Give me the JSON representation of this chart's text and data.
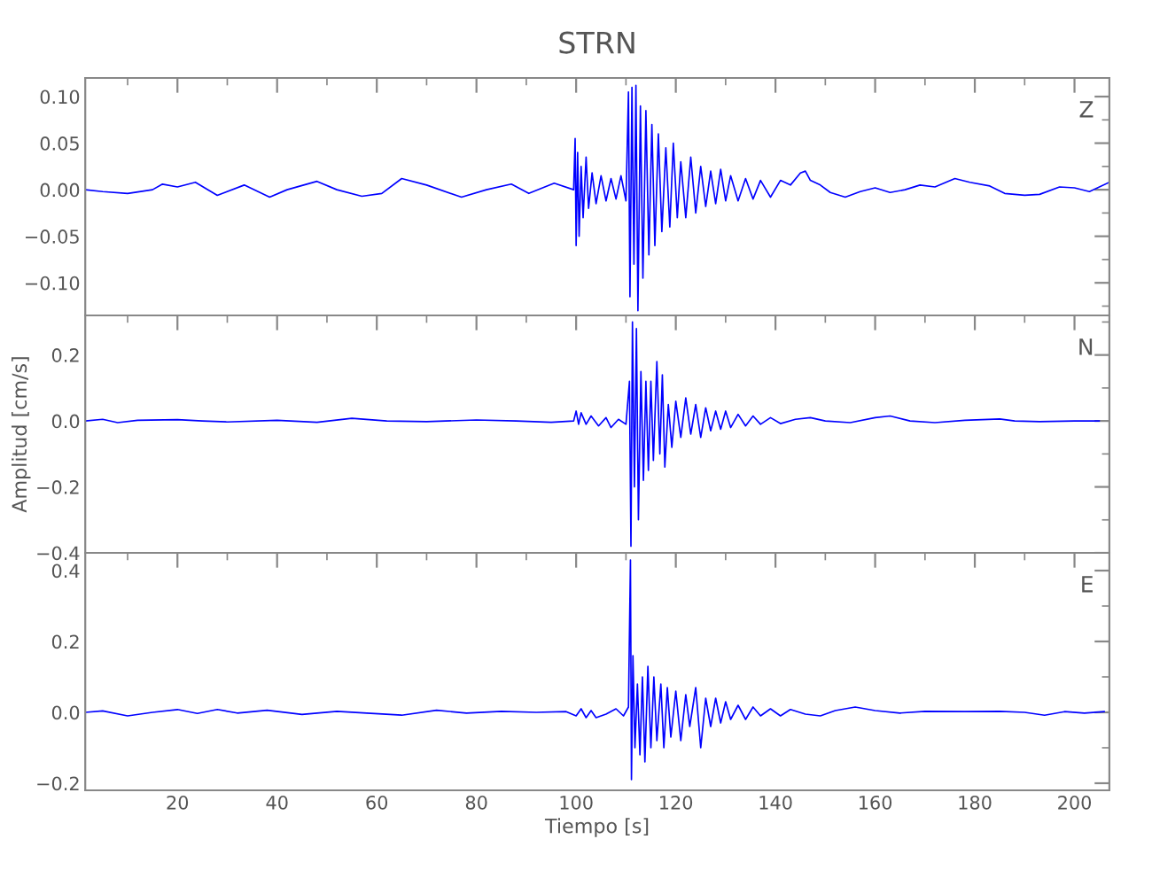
{
  "chart_data": [
    {
      "type": "line",
      "title": "STRN",
      "annotations": [
        "Z"
      ],
      "xlim": [
        1.5,
        207
      ],
      "xticks": [
        20,
        40,
        60,
        80,
        100,
        120,
        140,
        160,
        180,
        200
      ],
      "ylim": [
        -0.135,
        0.12
      ],
      "yticks": [
        {
          "value": -0.1,
          "label": "−0.10"
        },
        {
          "value": -0.05,
          "label": "−0.05"
        },
        {
          "value": 0,
          "label": "0.00"
        },
        {
          "value": 0.05,
          "label": "0.05"
        },
        {
          "value": 0.1,
          "label": "0.10"
        }
      ],
      "tick_labels": "y",
      "grid": false,
      "legend": false,
      "series": [
        {
          "color": "#0000ff",
          "x": [
            1.5,
            5,
            10,
            15,
            17,
            20,
            23.6,
            28,
            33.4,
            38.5,
            42,
            48,
            52,
            57,
            61,
            65,
            70,
            77,
            82,
            87,
            90.5,
            95.6,
            99.5,
            99.8,
            100.0,
            100.3,
            100.6,
            101.0,
            101.4,
            102,
            102.5,
            103.2,
            104,
            105,
            106,
            107,
            108,
            109,
            110,
            110.5,
            110.8,
            111.2,
            111.6,
            112,
            112.4,
            112.9,
            113.4,
            114,
            114.6,
            115.2,
            115.8,
            116.5,
            117.2,
            118,
            118.8,
            119.5,
            120.3,
            121,
            122,
            123,
            124,
            125,
            126,
            127,
            128,
            129,
            130,
            131,
            132.5,
            134,
            135.5,
            137,
            139,
            141,
            143,
            145,
            146,
            147,
            149,
            151,
            154,
            157,
            160,
            163,
            166,
            169,
            172,
            176,
            179,
            183,
            186,
            190,
            193,
            197,
            200,
            203,
            207
          ],
          "values": [
            0.0,
            -0.002,
            -0.004,
            0.0,
            0.006,
            0.003,
            0.008,
            -0.006,
            0.005,
            -0.008,
            0.0,
            0.009,
            0.0,
            -0.007,
            -0.004,
            0.012,
            0.005,
            -0.008,
            0.0,
            0.006,
            -0.004,
            0.007,
            0.0,
            0.055,
            -0.06,
            0.04,
            -0.05,
            0.025,
            -0.03,
            0.035,
            -0.02,
            0.018,
            -0.015,
            0.015,
            -0.012,
            0.012,
            -0.01,
            0.015,
            -0.012,
            0.105,
            -0.115,
            0.11,
            -0.08,
            0.112,
            -0.13,
            0.09,
            -0.095,
            0.085,
            -0.07,
            0.07,
            -0.06,
            0.06,
            -0.045,
            0.045,
            -0.04,
            0.05,
            -0.03,
            0.03,
            -0.03,
            0.035,
            -0.025,
            0.025,
            -0.018,
            0.02,
            -0.015,
            0.022,
            -0.012,
            0.015,
            -0.012,
            0.012,
            -0.01,
            0.01,
            -0.008,
            0.01,
            0.005,
            0.018,
            0.02,
            0.01,
            0.005,
            -0.003,
            -0.008,
            -0.002,
            0.002,
            -0.003,
            0.0,
            0.005,
            0.003,
            0.012,
            0.008,
            0.004,
            -0.004,
            -0.006,
            -0.005,
            0.003,
            0.002,
            -0.002,
            0.008
          ]
        }
      ]
    },
    {
      "type": "line",
      "ylabel": "Amplitud [cm/s]",
      "annotations": [
        "N"
      ],
      "xlim": [
        1.5,
        207
      ],
      "xticks": [
        20,
        40,
        60,
        80,
        100,
        120,
        140,
        160,
        180,
        200
      ],
      "ylim": [
        -0.4,
        0.32
      ],
      "yticks": [
        {
          "value": -0.4,
          "label": "−0.4"
        },
        {
          "value": -0.2,
          "label": "−0.2"
        },
        {
          "value": 0,
          "label": "0.0"
        },
        {
          "value": 0.2,
          "label": "0.2"
        }
      ],
      "tick_labels": "y",
      "grid": false,
      "legend": false,
      "series": [
        {
          "color": "#0000ff",
          "x": [
            1.5,
            5,
            8,
            12,
            20,
            25,
            30,
            40,
            48,
            55,
            62,
            70,
            80,
            88,
            95,
            99.5,
            100,
            100.5,
            101,
            102,
            103,
            104.5,
            106,
            107,
            108.5,
            110,
            110.7,
            111,
            111.3,
            111.7,
            112.1,
            112.5,
            113,
            113.5,
            114,
            114.5,
            115,
            115.5,
            116.2,
            116.8,
            117.3,
            117.8,
            118.5,
            119.2,
            120,
            121,
            122,
            123,
            124,
            125,
            126,
            127,
            128,
            129,
            130,
            131,
            132.5,
            134,
            135.5,
            137,
            139,
            141,
            144,
            147,
            150,
            155,
            160,
            163,
            167,
            172,
            178,
            185,
            188,
            193,
            200,
            205
          ],
          "values": [
            0.0,
            0.005,
            -0.005,
            0.002,
            0.004,
            0.0,
            -0.003,
            0.002,
            -0.004,
            0.008,
            0.0,
            -0.002,
            0.003,
            0.0,
            -0.004,
            0.0,
            0.03,
            -0.01,
            0.025,
            -0.01,
            0.015,
            -0.015,
            0.01,
            -0.02,
            0.005,
            -0.01,
            0.12,
            -0.38,
            0.3,
            -0.2,
            0.28,
            -0.3,
            0.15,
            -0.18,
            0.12,
            -0.15,
            0.12,
            -0.12,
            0.18,
            -0.1,
            0.14,
            -0.14,
            0.05,
            -0.08,
            0.06,
            -0.05,
            0.07,
            -0.04,
            0.05,
            -0.05,
            0.04,
            -0.03,
            0.03,
            -0.025,
            0.03,
            -0.02,
            0.02,
            -0.015,
            0.015,
            -0.01,
            0.01,
            -0.008,
            0.005,
            0.01,
            0.0,
            -0.005,
            0.01,
            0.015,
            0.0,
            -0.005,
            0.002,
            0.006,
            0.0,
            -0.002,
            0.0,
            0.0
          ]
        }
      ]
    },
    {
      "type": "line",
      "xlabel": "Tiempo [s]",
      "annotations": [
        "E"
      ],
      "xlim": [
        1.5,
        207
      ],
      "xticks": [
        20,
        40,
        60,
        80,
        100,
        120,
        140,
        160,
        180,
        200
      ],
      "ylim": [
        -0.22,
        0.45
      ],
      "yticks": [
        {
          "value": -0.2,
          "label": "−0.2"
        },
        {
          "value": 0,
          "label": "0.0"
        },
        {
          "value": 0.2,
          "label": "0.2"
        },
        {
          "value": 0.4,
          "label": "0.4"
        }
      ],
      "grid": false,
      "legend": false,
      "series": [
        {
          "color": "#0000ff",
          "x": [
            1.5,
            5,
            10,
            15,
            20,
            24,
            28,
            32,
            38,
            45,
            52,
            58,
            65,
            72,
            78,
            85,
            92,
            98,
            100,
            101,
            102,
            103,
            104,
            106,
            108,
            109.5,
            110.5,
            110.9,
            111.1,
            111.4,
            111.8,
            112.3,
            112.8,
            113.3,
            113.8,
            114.4,
            115,
            115.6,
            116.2,
            117,
            117.6,
            118.3,
            119,
            120,
            121,
            122,
            122.8,
            124,
            125,
            126,
            127,
            128,
            129,
            130,
            131,
            132.5,
            134,
            135.5,
            137,
            139,
            141,
            143,
            146,
            149,
            152,
            156,
            160,
            165,
            170,
            178,
            185,
            190,
            194,
            198,
            202,
            206
          ],
          "values": [
            0.0,
            0.004,
            -0.01,
            0.0,
            0.008,
            -0.003,
            0.008,
            -0.002,
            0.006,
            -0.006,
            0.003,
            -0.002,
            -0.008,
            0.006,
            -0.002,
            0.003,
            0.0,
            0.002,
            -0.01,
            0.01,
            -0.015,
            0.005,
            -0.015,
            -0.005,
            0.01,
            -0.01,
            0.015,
            0.43,
            -0.19,
            0.16,
            -0.1,
            0.08,
            -0.12,
            0.1,
            -0.14,
            0.13,
            -0.1,
            0.1,
            -0.08,
            0.08,
            -0.1,
            0.07,
            -0.07,
            0.06,
            -0.08,
            0.05,
            -0.04,
            0.07,
            -0.1,
            0.04,
            -0.04,
            0.04,
            -0.03,
            0.03,
            -0.02,
            0.02,
            -0.02,
            0.015,
            -0.01,
            0.01,
            -0.01,
            0.008,
            -0.005,
            -0.01,
            0.005,
            0.015,
            0.005,
            -0.002,
            0.003,
            0.002,
            0.003,
            0.0,
            -0.008,
            0.002,
            -0.002,
            0.002
          ]
        }
      ]
    }
  ]
}
